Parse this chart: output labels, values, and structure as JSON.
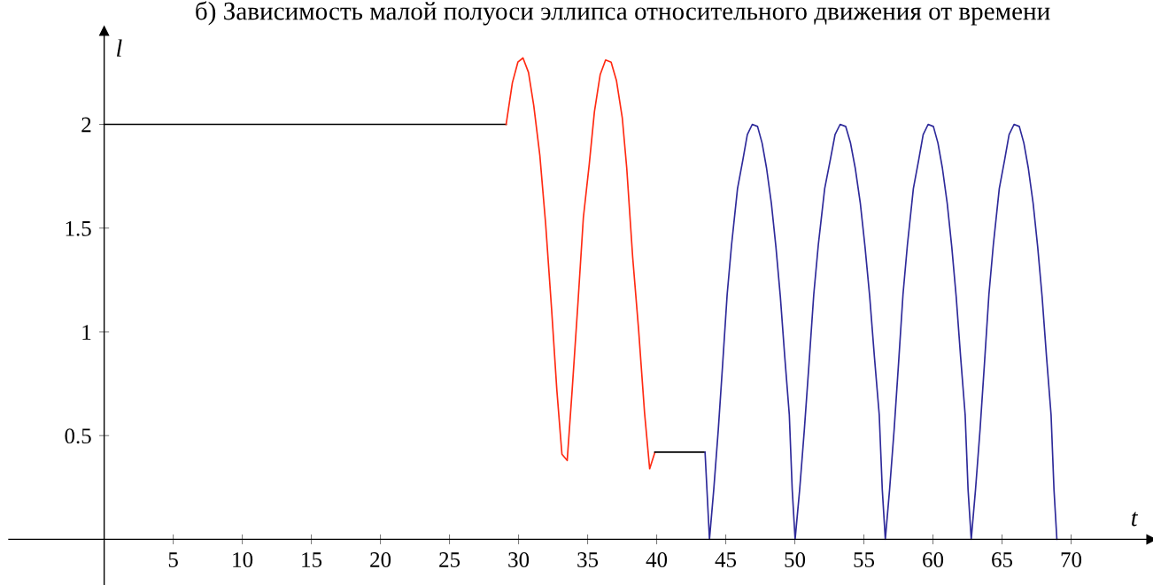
{
  "chart_data": {
    "type": "line",
    "title": "б) Зависимость малой полуоси эллипса относительного движения от времени",
    "xlabel": "t",
    "ylabel": "l",
    "series": [
      {
        "color": "#000000",
        "x": [
          0,
          29.1
        ],
        "values": [
          2.0,
          2.0
        ]
      },
      {
        "color": "#ff2a12",
        "x": [
          29.1,
          29.55,
          29.95,
          30.32,
          30.72,
          31.1,
          31.54,
          31.96,
          32.39,
          32.77,
          33.14,
          33.52,
          33.88,
          34.31,
          34.69,
          35.12,
          35.49,
          35.91,
          36.3,
          36.7,
          37.09,
          37.51,
          37.83,
          38.26,
          38.69,
          39.12,
          39.49,
          39.87
        ],
        "values": [
          2.0,
          2.2,
          2.3,
          2.32,
          2.25,
          2.09,
          1.85,
          1.52,
          1.11,
          0.72,
          0.41,
          0.38,
          0.72,
          1.15,
          1.55,
          1.81,
          2.06,
          2.24,
          2.31,
          2.3,
          2.21,
          2.03,
          1.79,
          1.36,
          1.01,
          0.61,
          0.34,
          0.42
        ]
      },
      {
        "color": "#000000",
        "x": [
          39.87,
          43.5
        ],
        "values": [
          0.42,
          0.42
        ]
      },
      {
        "color": "#2e2a9a",
        "x": [
          43.5,
          43.82,
          44.13,
          44.46,
          44.78,
          45.1,
          45.42,
          45.85,
          46.24,
          46.56,
          46.92,
          47.3,
          47.63,
          47.95,
          48.3,
          48.63,
          48.95,
          49.27,
          49.6,
          49.81,
          50.02,
          50.35,
          50.69,
          51.03,
          51.37,
          51.7,
          52.16,
          52.57,
          52.91,
          53.28,
          53.68,
          54.03,
          54.37,
          54.74,
          55.08,
          55.42,
          55.76,
          56.11,
          56.33,
          56.55,
          56.86,
          57.19,
          57.51,
          57.83,
          58.15,
          58.58,
          58.97,
          59.29,
          59.65,
          60.03,
          60.36,
          60.68,
          61.03,
          61.36,
          61.68,
          62.0,
          62.33,
          62.54,
          62.77,
          63.08,
          63.41,
          63.73,
          64.05,
          64.37,
          64.8,
          65.19,
          65.51,
          65.87,
          66.25,
          66.58,
          66.9,
          67.25,
          67.58,
          67.9,
          68.22,
          68.55,
          68.76,
          68.97
        ],
        "values": [
          0.42,
          0,
          0.24,
          0.53,
          0.85,
          1.18,
          1.42,
          1.69,
          1.83,
          1.95,
          2.0,
          1.99,
          1.91,
          1.79,
          1.62,
          1.41,
          1.17,
          0.88,
          0.6,
          0.24,
          0,
          0.24,
          0.53,
          0.85,
          1.18,
          1.42,
          1.69,
          1.83,
          1.95,
          2.0,
          1.99,
          1.91,
          1.79,
          1.62,
          1.41,
          1.17,
          0.88,
          0.6,
          0.24,
          0,
          0.24,
          0.53,
          0.85,
          1.18,
          1.42,
          1.69,
          1.83,
          1.95,
          2.0,
          1.99,
          1.91,
          1.79,
          1.62,
          1.41,
          1.17,
          0.88,
          0.6,
          0.24,
          0,
          0.24,
          0.53,
          0.85,
          1.18,
          1.42,
          1.69,
          1.83,
          1.95,
          2.0,
          1.99,
          1.91,
          1.79,
          1.62,
          1.41,
          1.17,
          0.88,
          0.6,
          0.24,
          0
        ]
      }
    ],
    "xlim": [
      -6.9,
      75.8
    ],
    "ylim": [
      -0.22,
      2.45
    ],
    "xticks": [
      5,
      10,
      15,
      20,
      25,
      30,
      35,
      40,
      45,
      50,
      55,
      60,
      65,
      70
    ],
    "yticks": [
      0.5,
      1,
      1.5,
      2
    ],
    "grid": false,
    "legend": false,
    "marker": "none",
    "line_style": "solid"
  }
}
